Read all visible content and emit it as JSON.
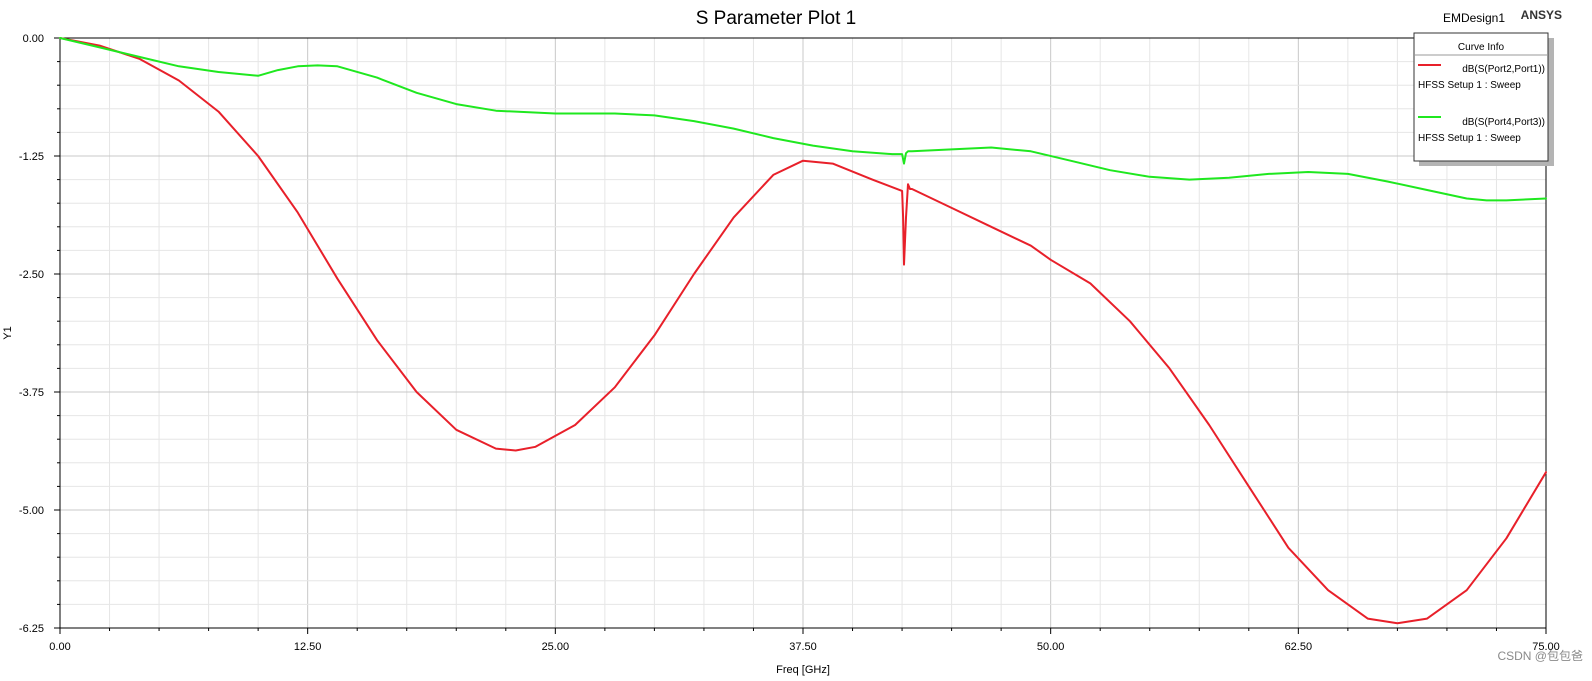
{
  "header": {
    "project": "EMDesign1",
    "brand": "ANSYS"
  },
  "watermark": "CSDN @包包爸",
  "colors": {
    "s21": "#e8202a",
    "s43": "#1fe81f",
    "grid_major": "#c8c8c8",
    "grid_minor": "#e6e6e6"
  },
  "chart_data": {
    "type": "line",
    "title": "S Parameter Plot 1",
    "xlabel": "Freq [GHz]",
    "ylabel": "Y1",
    "xlim": [
      0,
      75
    ],
    "ylim": [
      -6.25,
      0
    ],
    "x_ticks": [
      "0.00",
      "12.50",
      "25.00",
      "37.50",
      "50.00",
      "62.50",
      "75.00"
    ],
    "y_ticks": [
      "0.00",
      "-1.25",
      "-2.50",
      "-3.75",
      "-5.00",
      "-6.25"
    ],
    "grid": true,
    "legend": {
      "title": "Curve Info",
      "placement": "top-right"
    },
    "series": [
      {
        "name": "dB(S(Port2,Port1))",
        "setup": "HFSS Setup 1 : Sweep",
        "x": [
          0,
          2,
          4,
          6,
          8,
          10,
          12,
          14,
          16,
          18,
          20,
          22,
          23,
          24,
          26,
          28,
          30,
          32,
          34,
          36,
          37.5,
          39,
          41,
          42.5,
          42.55,
          42.6,
          42.7,
          42.8,
          42.9,
          43,
          45,
          47,
          49,
          50,
          52,
          54,
          56,
          58,
          60,
          62,
          64,
          66,
          67.5,
          69,
          71,
          73,
          75
        ],
        "y": [
          0,
          -0.08,
          -0.22,
          -0.45,
          -0.78,
          -1.25,
          -1.85,
          -2.55,
          -3.2,
          -3.75,
          -4.15,
          -4.35,
          -4.37,
          -4.33,
          -4.1,
          -3.7,
          -3.15,
          -2.5,
          -1.9,
          -1.45,
          -1.3,
          -1.33,
          -1.5,
          -1.62,
          -1.9,
          -2.4,
          -1.9,
          -1.55,
          -1.6,
          -1.6,
          -1.8,
          -2.0,
          -2.2,
          -2.35,
          -2.6,
          -3.0,
          -3.5,
          -4.1,
          -4.75,
          -5.4,
          -5.85,
          -6.15,
          -6.2,
          -6.15,
          -5.85,
          -5.3,
          -4.6
        ]
      },
      {
        "name": "dB(S(Port4,Port3))",
        "setup": "HFSS Setup 1 : Sweep",
        "x": [
          0,
          2,
          4,
          6,
          8,
          10,
          11,
          12,
          13,
          14,
          16,
          18,
          20,
          22,
          25,
          28,
          30,
          32,
          34,
          36,
          38,
          40,
          42,
          42.5,
          42.6,
          42.7,
          42.8,
          43,
          45,
          47,
          49,
          51,
          53,
          55,
          57,
          59,
          61,
          63,
          65,
          67,
          69,
          71,
          72,
          73,
          75
        ],
        "y": [
          0,
          -0.1,
          -0.2,
          -0.3,
          -0.36,
          -0.4,
          -0.34,
          -0.3,
          -0.29,
          -0.3,
          -0.42,
          -0.58,
          -0.7,
          -0.77,
          -0.8,
          -0.8,
          -0.82,
          -0.88,
          -0.96,
          -1.06,
          -1.14,
          -1.2,
          -1.23,
          -1.23,
          -1.33,
          -1.22,
          -1.2,
          -1.2,
          -1.18,
          -1.16,
          -1.2,
          -1.3,
          -1.4,
          -1.47,
          -1.5,
          -1.48,
          -1.44,
          -1.42,
          -1.44,
          -1.52,
          -1.61,
          -1.7,
          -1.72,
          -1.72,
          -1.7
        ]
      }
    ]
  }
}
